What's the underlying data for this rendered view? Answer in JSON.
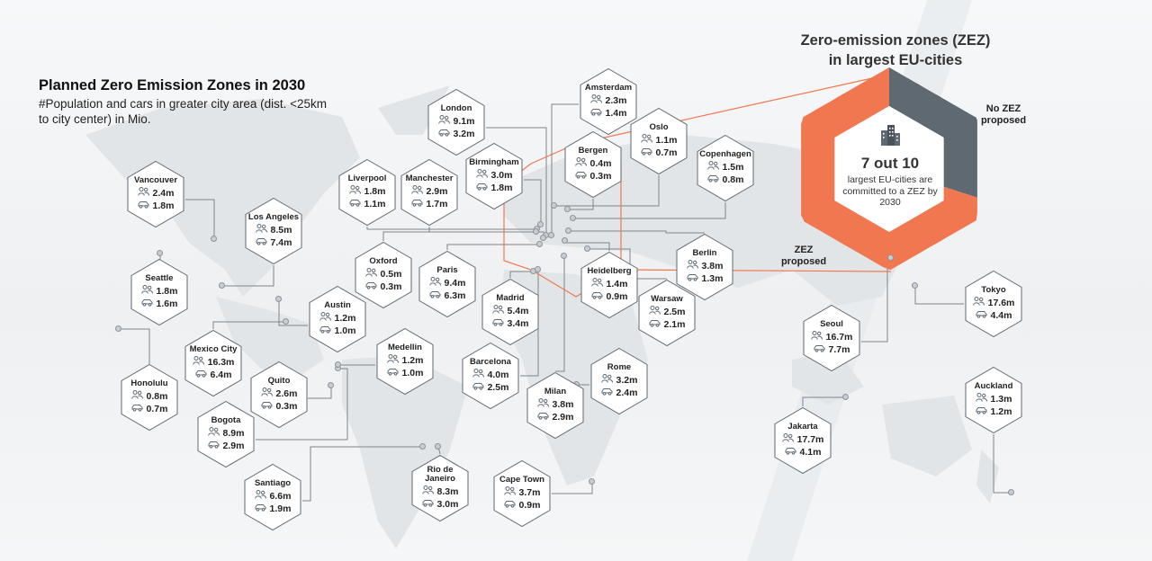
{
  "title": "Planned Zero Emission Zones in 2030",
  "subtitle": "#Population and cars in greater city area (dist. <25km to city center) in Mio.",
  "zez": {
    "title_line1": "Zero-emission zones (ZEZ)",
    "title_line2": "in largest EU-cities",
    "count_text": "7 out 10",
    "description": "largest EU-cities are committed to a ZEZ by 2030",
    "segments": [
      {
        "label": "ZEZ proposed",
        "value": 7,
        "color": "#f0774f"
      },
      {
        "label": "No ZEZ proposed",
        "value": 3,
        "color": "#5f6972"
      }
    ]
  },
  "colors": {
    "accent": "#f0774f",
    "dark": "#5f6972",
    "connector": "#7e858c"
  },
  "icons": {
    "population": "people-icon",
    "cars": "car-icon",
    "city": "buildings-icon"
  },
  "cities": [
    {
      "name": "Vancouver",
      "population": "2.4m",
      "cars": "1.8m"
    },
    {
      "name": "Seattle",
      "population": "1.8m",
      "cars": "1.6m"
    },
    {
      "name": "Honolulu",
      "population": "0.8m",
      "cars": "0.7m"
    },
    {
      "name": "Los Angeles",
      "population": "8.5m",
      "cars": "7.4m"
    },
    {
      "name": "Mexico City",
      "population": "16.3m",
      "cars": "6.4m"
    },
    {
      "name": "Austin",
      "population": "1.2m",
      "cars": "1.0m"
    },
    {
      "name": "Quito",
      "population": "2.6m",
      "cars": "0.3m"
    },
    {
      "name": "Bogota",
      "population": "8.9m",
      "cars": "2.9m"
    },
    {
      "name": "Medellin",
      "population": "1.2m",
      "cars": "1.0m"
    },
    {
      "name": "Santiago",
      "population": "6.6m",
      "cars": "1.9m"
    },
    {
      "name": "Rio de Janeiro",
      "population": "8.3m",
      "cars": "3.0m"
    },
    {
      "name": "Liverpool",
      "population": "1.8m",
      "cars": "1.1m"
    },
    {
      "name": "Manchester",
      "population": "2.9m",
      "cars": "1.7m"
    },
    {
      "name": "London",
      "population": "9.1m",
      "cars": "3.2m"
    },
    {
      "name": "Birmingham",
      "population": "3.0m",
      "cars": "1.8m"
    },
    {
      "name": "Oxford",
      "population": "0.5m",
      "cars": "0.3m"
    },
    {
      "name": "Paris",
      "population": "9.4m",
      "cars": "6.3m"
    },
    {
      "name": "Madrid",
      "population": "5.4m",
      "cars": "3.4m"
    },
    {
      "name": "Barcelona",
      "population": "4.0m",
      "cars": "2.5m"
    },
    {
      "name": "Milan",
      "population": "3.8m",
      "cars": "2.9m"
    },
    {
      "name": "Amsterdam",
      "population": "2.3m",
      "cars": "1.4m"
    },
    {
      "name": "Bergen",
      "population": "0.4m",
      "cars": "0.3m"
    },
    {
      "name": "Oslo",
      "population": "1.1m",
      "cars": "0.7m"
    },
    {
      "name": "Copenhagen",
      "population": "1.5m",
      "cars": "0.8m"
    },
    {
      "name": "Heidelberg",
      "population": "1.4m",
      "cars": "0.9m"
    },
    {
      "name": "Berlin",
      "population": "3.8m",
      "cars": "1.3m"
    },
    {
      "name": "Warsaw",
      "population": "2.5m",
      "cars": "2.1m"
    },
    {
      "name": "Rome",
      "population": "3.2m",
      "cars": "2.4m"
    },
    {
      "name": "Cape Town",
      "population": "3.7m",
      "cars": "0.9m"
    },
    {
      "name": "Seoul",
      "population": "16.7m",
      "cars": "7.7m"
    },
    {
      "name": "Tokyo",
      "population": "17.6m",
      "cars": "4.4m"
    },
    {
      "name": "Jakarta",
      "population": "17.7m",
      "cars": "4.1m"
    },
    {
      "name": "Auckland",
      "population": "1.3m",
      "cars": "1.2m"
    }
  ]
}
